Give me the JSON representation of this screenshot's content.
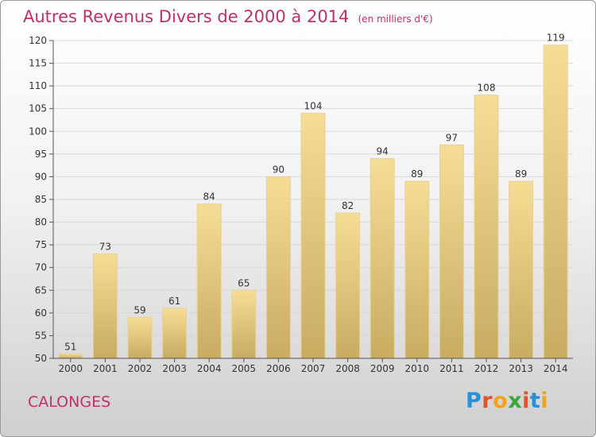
{
  "title": "Autres Revenus Divers de 2000 à 2014",
  "unit": "(en milliers d'€)",
  "commune": "CALONGES",
  "logo": {
    "letters": [
      "P",
      "r",
      "o",
      "x",
      "i",
      "t",
      "i"
    ],
    "colors": [
      "#2a8fd6",
      "#e0542a",
      "#f3a21f",
      "#3aa63a",
      "#e0542a",
      "#2a8fd6",
      "#f3a21f"
    ]
  },
  "colors": {
    "title": "#c0306a",
    "bar_light": "#f6dd95",
    "bar_dark": "#c9ab62"
  },
  "chart_data": {
    "type": "bar",
    "categories": [
      "2000",
      "2001",
      "2002",
      "2003",
      "2004",
      "2005",
      "2006",
      "2007",
      "2008",
      "2009",
      "2010",
      "2011",
      "2012",
      "2013",
      "2014"
    ],
    "values": [
      51,
      73,
      59,
      61,
      84,
      65,
      90,
      104,
      82,
      94,
      89,
      97,
      108,
      89,
      119
    ],
    "ylim": [
      50,
      120
    ],
    "yticks": [
      50,
      55,
      60,
      65,
      70,
      75,
      80,
      85,
      90,
      95,
      100,
      105,
      110,
      115,
      120
    ],
    "grid": true,
    "legend": "none"
  }
}
